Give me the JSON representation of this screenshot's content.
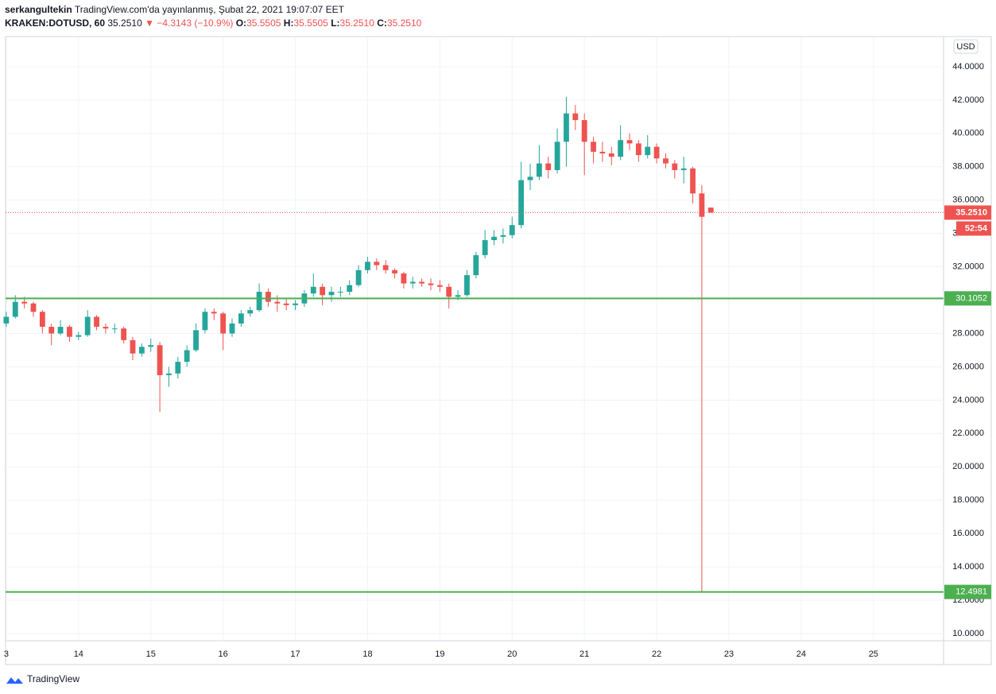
{
  "header": {
    "author": "serkangultekin",
    "published": "TradingView.com'da yayınlanmış, Şubat 22, 2021 19:07:07 EET",
    "symbol": "KRAKEN:DOTUSD, 60",
    "last": "35.2510",
    "change": "▼ −4.3143 (−10.9%)",
    "ohlc": [
      {
        "label": "O:",
        "value": "35.5505"
      },
      {
        "label": "H:",
        "value": "35.5505"
      },
      {
        "label": "L:",
        "value": "35.2510"
      },
      {
        "label": "C:",
        "value": "35.2510"
      }
    ]
  },
  "chart_data": {
    "type": "candlestick",
    "currency": "USD",
    "up_color": "#26a69a",
    "down_color": "#ef5350",
    "grid": true,
    "xlim": [
      12.99,
      25.97
    ],
    "ylim": [
      9.57,
      45.81
    ],
    "xticks": [
      {
        "value": 13,
        "label": "3"
      },
      14,
      15,
      16,
      17,
      18,
      19,
      20,
      21,
      22,
      23,
      24,
      25
    ],
    "yticks": [
      {
        "value": 10,
        "label": "10.0000"
      },
      {
        "value": 12,
        "label": "12.0000"
      },
      {
        "value": 14,
        "label": "14.0000"
      },
      {
        "value": 16,
        "label": "16.0000"
      },
      {
        "value": 18,
        "label": "18.0000"
      },
      {
        "value": 20,
        "label": "20.0000"
      },
      {
        "value": 22,
        "label": "22.0000"
      },
      {
        "value": 24,
        "label": "24.0000"
      },
      {
        "value": 26,
        "label": "26.0000"
      },
      {
        "value": 28,
        "label": "28.0000"
      },
      {
        "value": 30,
        "label": "30.0000"
      },
      {
        "value": 32,
        "label": "32.0000"
      },
      {
        "value": 34,
        "label": "34.0000"
      },
      {
        "value": 36,
        "label": "36.0000"
      },
      {
        "value": 38,
        "label": "38.0000"
      },
      {
        "value": 40,
        "label": "40.0000"
      },
      {
        "value": 42,
        "label": "42.0000"
      },
      {
        "value": 44,
        "label": "44.0000"
      }
    ],
    "x": [
      13,
      13.125,
      13.25,
      13.375,
      13.5,
      13.625,
      13.75,
      13.875,
      14,
      14.125,
      14.25,
      14.375,
      14.5,
      14.625,
      14.75,
      14.875,
      15,
      15.125,
      15.25,
      15.375,
      15.5,
      15.625,
      15.75,
      15.875,
      16,
      16.125,
      16.25,
      16.375,
      16.5,
      16.625,
      16.75,
      16.875,
      17,
      17.125,
      17.25,
      17.375,
      17.5,
      17.625,
      17.75,
      17.875,
      18,
      18.125,
      18.25,
      18.375,
      18.5,
      18.625,
      18.75,
      18.875,
      19,
      19.125,
      19.25,
      19.375,
      19.5,
      19.625,
      19.75,
      19.875,
      20,
      20.125,
      20.25,
      20.375,
      20.5,
      20.625,
      20.75,
      20.875,
      21,
      21.125,
      21.25,
      21.375,
      21.5,
      21.625,
      21.75,
      21.875,
      22,
      22.125,
      22.25,
      22.375,
      22.5,
      22.625,
      22.75
    ],
    "ohlc": [
      [
        28.6,
        29.3,
        28.4,
        29.0
      ],
      [
        29.0,
        30.3,
        28.9,
        29.9
      ],
      [
        29.9,
        30.2,
        29.5,
        29.8
      ],
      [
        29.8,
        29.9,
        29.0,
        29.3
      ],
      [
        29.3,
        29.4,
        28.0,
        28.4
      ],
      [
        28.4,
        28.6,
        27.3,
        28.0
      ],
      [
        28.0,
        28.8,
        27.9,
        28.4
      ],
      [
        28.4,
        28.5,
        27.5,
        27.8
      ],
      [
        27.8,
        28.1,
        27.6,
        27.9
      ],
      [
        27.9,
        29.4,
        27.8,
        29.0
      ],
      [
        29.0,
        29.1,
        28.2,
        28.4
      ],
      [
        28.4,
        28.6,
        28.0,
        28.3
      ],
      [
        28.3,
        28.6,
        28.0,
        28.3
      ],
      [
        28.3,
        28.4,
        27.4,
        27.6
      ],
      [
        27.6,
        27.8,
        26.4,
        26.8
      ],
      [
        26.8,
        27.4,
        26.6,
        27.2
      ],
      [
        27.2,
        27.7,
        26.9,
        27.3
      ],
      [
        27.3,
        27.5,
        23.3,
        25.5
      ],
      [
        25.5,
        26.0,
        24.8,
        25.6
      ],
      [
        25.6,
        26.6,
        25.3,
        26.3
      ],
      [
        26.3,
        27.3,
        26.0,
        27.0
      ],
      [
        27.0,
        28.6,
        26.9,
        28.2
      ],
      [
        28.2,
        29.5,
        28.0,
        29.3
      ],
      [
        29.3,
        29.5,
        28.8,
        29.2
      ],
      [
        29.2,
        29.3,
        27.0,
        28.0
      ],
      [
        28.0,
        28.9,
        27.8,
        28.6
      ],
      [
        28.6,
        29.4,
        28.4,
        29.2
      ],
      [
        29.2,
        29.6,
        29.0,
        29.4
      ],
      [
        29.4,
        31.0,
        29.3,
        30.5
      ],
      [
        30.5,
        30.7,
        29.6,
        29.9
      ],
      [
        29.9,
        30.3,
        29.3,
        29.8
      ],
      [
        29.8,
        30.1,
        29.4,
        29.7
      ],
      [
        29.7,
        30.0,
        29.4,
        29.8
      ],
      [
        29.8,
        30.6,
        29.6,
        30.4
      ],
      [
        30.4,
        31.6,
        30.2,
        30.8
      ],
      [
        30.8,
        31.0,
        29.7,
        30.3
      ],
      [
        30.3,
        30.8,
        29.9,
        30.5
      ],
      [
        30.5,
        30.8,
        30.2,
        30.5
      ],
      [
        30.5,
        31.2,
        30.3,
        30.9
      ],
      [
        30.9,
        32.1,
        30.8,
        31.8
      ],
      [
        31.8,
        32.6,
        31.6,
        32.3
      ],
      [
        32.3,
        32.5,
        31.8,
        32.1
      ],
      [
        32.1,
        32.4,
        31.6,
        31.8
      ],
      [
        31.8,
        31.9,
        31.3,
        31.6
      ],
      [
        31.6,
        31.7,
        30.7,
        31.0
      ],
      [
        31.0,
        31.4,
        30.7,
        31.1
      ],
      [
        31.1,
        31.3,
        30.8,
        31.0
      ],
      [
        31.0,
        31.3,
        30.6,
        30.9
      ],
      [
        30.9,
        31.2,
        30.5,
        30.8
      ],
      [
        30.8,
        31.0,
        29.5,
        30.2
      ],
      [
        30.2,
        30.6,
        30.0,
        30.3
      ],
      [
        30.3,
        31.8,
        30.2,
        31.5
      ],
      [
        31.5,
        32.9,
        31.3,
        32.7
      ],
      [
        32.7,
        34.2,
        32.5,
        33.6
      ],
      [
        33.6,
        34.2,
        33.3,
        33.8
      ],
      [
        33.8,
        34.3,
        33.4,
        33.9
      ],
      [
        33.9,
        35.0,
        33.7,
        34.5
      ],
      [
        34.5,
        38.3,
        34.3,
        37.2
      ],
      [
        37.2,
        38.2,
        36.6,
        37.4
      ],
      [
        37.4,
        39.3,
        37.2,
        38.2
      ],
      [
        38.2,
        38.6,
        37.3,
        37.8
      ],
      [
        37.8,
        40.3,
        37.6,
        39.5
      ],
      [
        39.5,
        42.2,
        38.0,
        41.2
      ],
      [
        41.2,
        41.7,
        40.2,
        40.8
      ],
      [
        40.8,
        41.2,
        37.5,
        39.5
      ],
      [
        39.5,
        39.8,
        38.2,
        38.9
      ],
      [
        38.9,
        39.5,
        38.3,
        38.8
      ],
      [
        38.8,
        39.2,
        38.1,
        38.6
      ],
      [
        38.6,
        40.5,
        38.4,
        39.6
      ],
      [
        39.6,
        40.0,
        39.0,
        39.4
      ],
      [
        39.4,
        39.6,
        38.3,
        38.7
      ],
      [
        38.7,
        39.9,
        38.5,
        39.2
      ],
      [
        39.2,
        39.4,
        38.2,
        38.5
      ],
      [
        38.5,
        38.8,
        37.9,
        38.2
      ],
      [
        38.2,
        38.4,
        37.3,
        37.8
      ],
      [
        37.8,
        38.6,
        37.0,
        37.9
      ],
      [
        37.9,
        38.0,
        35.8,
        36.4
      ],
      [
        36.4,
        36.9,
        12.4981,
        35.0
      ],
      [
        35.5505,
        35.5505,
        35.251,
        35.251
      ]
    ],
    "price_line": {
      "value": 35.251,
      "label": "35.2510",
      "color": "#ef5350",
      "countdown": "52:54"
    },
    "hlines": [
      {
        "value": 30.1052,
        "label": "30.1052",
        "color": "#4caf50"
      },
      {
        "value": 12.4981,
        "label": "12.4981",
        "color": "#4caf50"
      }
    ]
  },
  "footer": {
    "brand": "TradingView"
  }
}
